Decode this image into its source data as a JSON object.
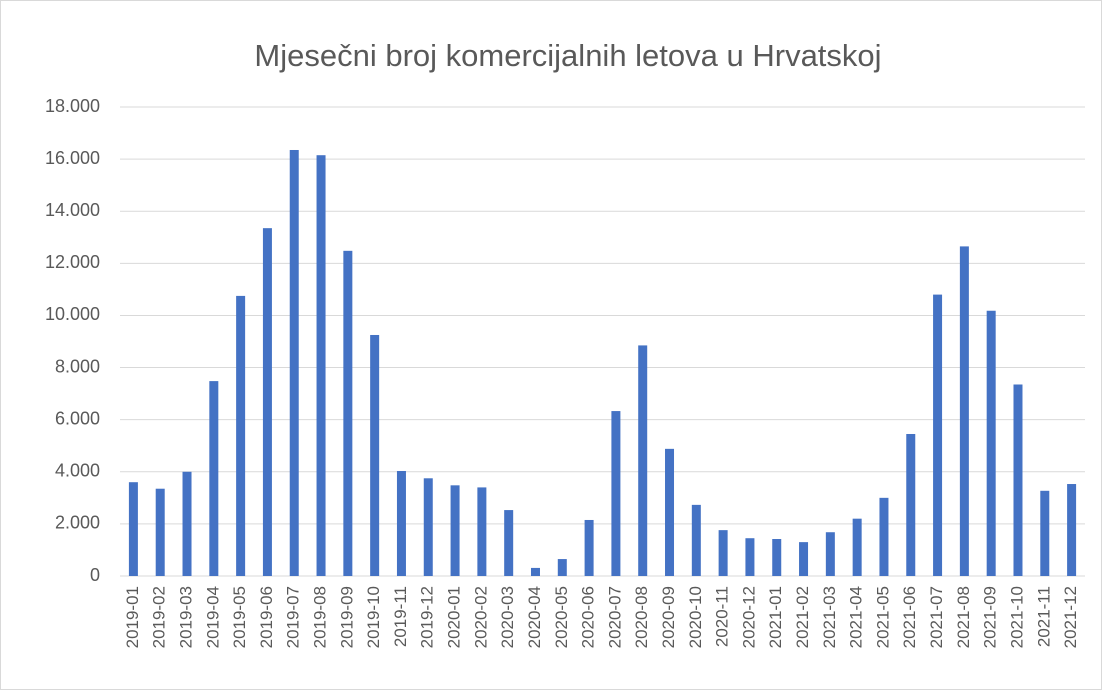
{
  "chart_data": {
    "type": "bar",
    "title": "Mjesečni broj komercijalnih letova u Hrvatskoj",
    "categories": [
      "2019-01",
      "2019-02",
      "2019-03",
      "2019-04",
      "2019-05",
      "2019-06",
      "2019-07",
      "2019-08",
      "2019-09",
      "2019-10",
      "2019-11",
      "2019-12",
      "2020-01",
      "2020-02",
      "2020-03",
      "2020-04",
      "2020-05",
      "2020-06",
      "2020-07",
      "2020-08",
      "2020-09",
      "2020-10",
      "2020-11",
      "2020-12",
      "2021-01",
      "2021-02",
      "2021-03",
      "2021-04",
      "2021-05",
      "2021-06",
      "2021-07",
      "2021-08",
      "2021-09",
      "2021-10",
      "2021-11",
      "2021-12"
    ],
    "values": [
      3600,
      3350,
      4000,
      7480,
      10750,
      13350,
      16350,
      16150,
      12480,
      9250,
      4030,
      3750,
      3480,
      3400,
      2530,
      310,
      650,
      2150,
      6330,
      8850,
      4880,
      2730,
      1760,
      1450,
      1420,
      1300,
      1680,
      2200,
      3000,
      5450,
      10800,
      12650,
      10180,
      7350,
      3270,
      3530
    ],
    "color": "#4472c4",
    "ylim": [
      0,
      18000
    ],
    "yticks": [
      0,
      {
        "value": 2000,
        "label": "2.000"
      },
      {
        "value": 4000,
        "label": "4.000"
      },
      {
        "value": 6000,
        "label": "6.000"
      },
      {
        "value": 8000,
        "label": "8.000"
      },
      {
        "value": 10000,
        "label": "10.000"
      },
      {
        "value": 12000,
        "label": "12.000"
      },
      {
        "value": 14000,
        "label": "14.000"
      },
      {
        "value": 16000,
        "label": "16.000"
      },
      {
        "value": 18000,
        "label": "18.000"
      }
    ],
    "grid": true
  }
}
